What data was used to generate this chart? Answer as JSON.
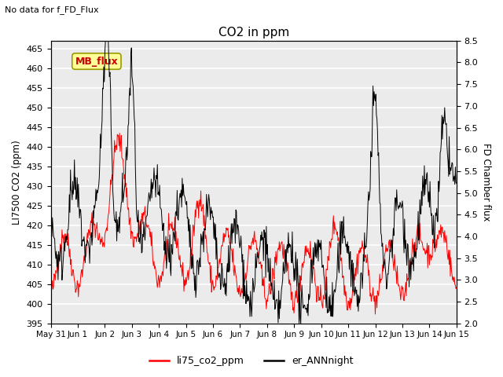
{
  "title": "CO2 in ppm",
  "subtitle": "No data for f_FD_Flux",
  "ylabel_left": "LI7500 CO2 (ppm)",
  "ylabel_right": "FD Chamber flux",
  "ylim_left": [
    395,
    467
  ],
  "ylim_right": [
    2.0,
    8.5
  ],
  "yticks_left": [
    395,
    400,
    405,
    410,
    415,
    420,
    425,
    430,
    435,
    440,
    445,
    450,
    455,
    460,
    465
  ],
  "yticks_right": [
    2.0,
    2.5,
    3.0,
    3.5,
    4.0,
    4.5,
    5.0,
    5.5,
    6.0,
    6.5,
    7.0,
    7.5,
    8.0,
    8.5
  ],
  "xtick_labels": [
    "May 31",
    "Jun 1",
    "Jun 2",
    "Jun 3",
    "Jun 4",
    "Jun 5",
    "Jun 6",
    "Jun 7",
    "Jun 8",
    "Jun 9",
    "Jun 10",
    "Jun 11",
    "Jun 12",
    "Jun 13",
    "Jun 14",
    "Jun 15"
  ],
  "color_red": "#ff0000",
  "color_black": "#000000",
  "legend_label1": "li75_co2_ppm",
  "legend_label2": "er_ANNnight",
  "mb_flux_box_facecolor": "#ffff99",
  "mb_flux_text_color": "#cc0000",
  "mb_flux_edge_color": "#999900",
  "background_color": "#ebebeb",
  "grid_color": "#ffffff"
}
